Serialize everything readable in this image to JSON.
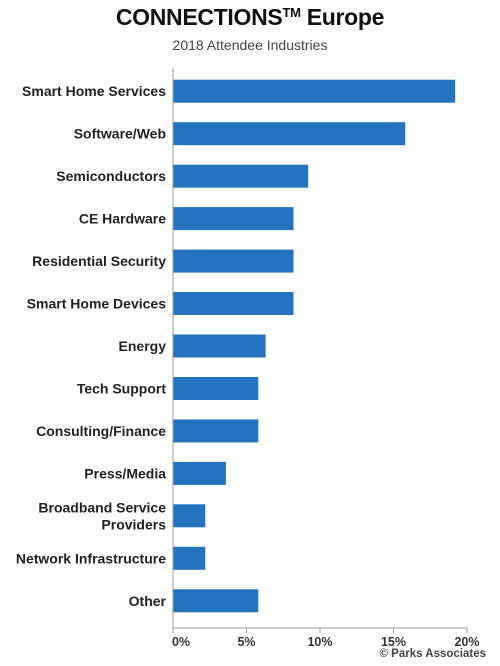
{
  "chart_data": {
    "type": "bar",
    "orientation": "horizontal",
    "title": "CONNECTIONS",
    "title_superscript": "TM",
    "title_suffix": "Europe",
    "subtitle": "2018 Attendee Industries",
    "categories": [
      [
        "Smart Home Services"
      ],
      [
        "Software/Web"
      ],
      [
        "Semiconductors"
      ],
      [
        "CE Hardware"
      ],
      [
        "Residential Security"
      ],
      [
        "Smart Home Devices"
      ],
      [
        "Energy"
      ],
      [
        "Tech Support"
      ],
      [
        "Consulting/Finance"
      ],
      [
        "Press/Media"
      ],
      [
        "Broadband Service",
        "Providers"
      ],
      [
        "Network Infrastructure"
      ],
      [
        "Other"
      ]
    ],
    "values": [
      19.2,
      15.8,
      9.2,
      8.2,
      8.2,
      8.2,
      6.3,
      5.8,
      5.8,
      3.6,
      2.2,
      2.2,
      5.8
    ],
    "xlim": [
      0,
      20
    ],
    "xticks": [
      "0%",
      "5%",
      "10%",
      "15%",
      "20%"
    ],
    "bar_color": "#2373BE",
    "grid": false,
    "legend": "none"
  },
  "credit": "© Parks Associates"
}
